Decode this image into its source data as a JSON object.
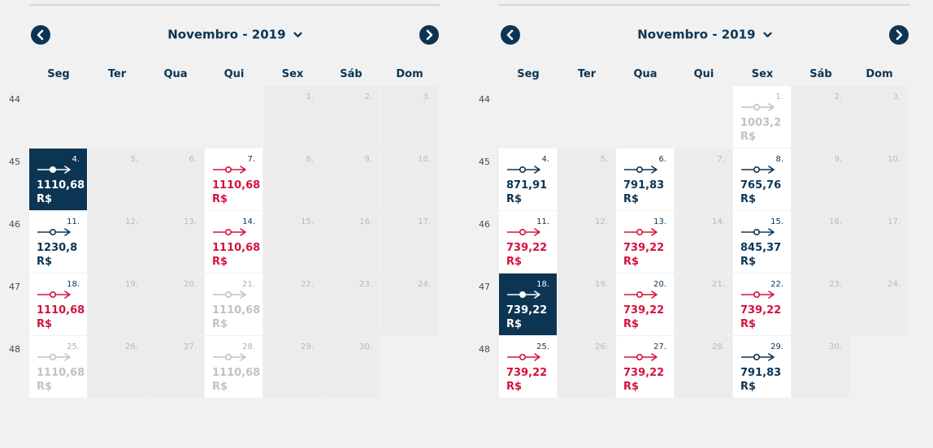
{
  "colors": {
    "navy": "#0c3554",
    "red": "#d5123d",
    "disabled": "#c2c2c2",
    "background": "#f1f1f1"
  },
  "icons": {
    "prev": "chevron-left-icon",
    "next": "chevron-right-icon",
    "month_dropdown": "chevron-down-icon",
    "flight": "flight-route-icon"
  },
  "weekdays": [
    "Seg",
    "Ter",
    "Qua",
    "Qui",
    "Sex",
    "Sáb",
    "Dom"
  ],
  "calendars": [
    {
      "month_label": "Novembro - 2019",
      "week_numbers": [
        "44",
        "45",
        "46",
        "47",
        "48"
      ],
      "weeks": [
        [
          null,
          null,
          null,
          null,
          {
            "day": "1.",
            "state": "closed"
          },
          {
            "day": "2.",
            "state": "closed"
          },
          {
            "day": "3.",
            "state": "closed"
          }
        ],
        [
          {
            "day": "4.",
            "state": "selected",
            "price": "1110,68",
            "currency": "R$"
          },
          {
            "day": "5.",
            "state": "closed"
          },
          {
            "day": "6.",
            "state": "closed"
          },
          {
            "day": "7.",
            "state": "cheapest",
            "price": "1110,68",
            "currency": "R$"
          },
          {
            "day": "8.",
            "state": "closed"
          },
          {
            "day": "9.",
            "state": "closed"
          },
          {
            "day": "10.",
            "state": "closed"
          }
        ],
        [
          {
            "day": "11.",
            "state": "available",
            "price": "1230,8",
            "currency": "R$"
          },
          {
            "day": "12.",
            "state": "closed"
          },
          {
            "day": "13.",
            "state": "closed"
          },
          {
            "day": "14.",
            "state": "cheapest",
            "price": "1110,68",
            "currency": "R$"
          },
          {
            "day": "15.",
            "state": "closed"
          },
          {
            "day": "16.",
            "state": "closed"
          },
          {
            "day": "17.",
            "state": "closed"
          }
        ],
        [
          {
            "day": "18.",
            "state": "cheapest",
            "price": "1110,68",
            "currency": "R$"
          },
          {
            "day": "19.",
            "state": "closed"
          },
          {
            "day": "20.",
            "state": "closed"
          },
          {
            "day": "21.",
            "state": "disabled",
            "price": "1110,68",
            "currency": "R$"
          },
          {
            "day": "22.",
            "state": "closed"
          },
          {
            "day": "23.",
            "state": "closed"
          },
          {
            "day": "24.",
            "state": "closed"
          }
        ],
        [
          {
            "day": "25.",
            "state": "disabled",
            "price": "1110,68",
            "currency": "R$"
          },
          {
            "day": "26.",
            "state": "closed"
          },
          {
            "day": "27.",
            "state": "closed"
          },
          {
            "day": "28.",
            "state": "disabled",
            "price": "1110,68",
            "currency": "R$"
          },
          {
            "day": "29.",
            "state": "closed"
          },
          {
            "day": "30.",
            "state": "closed"
          },
          null
        ]
      ]
    },
    {
      "month_label": "Novembro - 2019",
      "week_numbers": [
        "44",
        "45",
        "46",
        "47",
        "48"
      ],
      "weeks": [
        [
          null,
          null,
          null,
          null,
          {
            "day": "1.",
            "state": "disabled",
            "price": "1003,2",
            "currency": "R$"
          },
          {
            "day": "2.",
            "state": "closed"
          },
          {
            "day": "3.",
            "state": "closed"
          }
        ],
        [
          {
            "day": "4.",
            "state": "available",
            "price": "871,91",
            "currency": "R$"
          },
          {
            "day": "5.",
            "state": "closed"
          },
          {
            "day": "6.",
            "state": "available",
            "price": "791,83",
            "currency": "R$"
          },
          {
            "day": "7.",
            "state": "closed"
          },
          {
            "day": "8.",
            "state": "available",
            "price": "765,76",
            "currency": "R$"
          },
          {
            "day": "9.",
            "state": "closed"
          },
          {
            "day": "10.",
            "state": "closed"
          }
        ],
        [
          {
            "day": "11.",
            "state": "cheapest",
            "price": "739,22",
            "currency": "R$"
          },
          {
            "day": "12.",
            "state": "closed"
          },
          {
            "day": "13.",
            "state": "cheapest",
            "price": "739,22",
            "currency": "R$"
          },
          {
            "day": "14.",
            "state": "closed"
          },
          {
            "day": "15.",
            "state": "available",
            "price": "845,37",
            "currency": "R$"
          },
          {
            "day": "16.",
            "state": "closed"
          },
          {
            "day": "17.",
            "state": "closed"
          }
        ],
        [
          {
            "day": "18.",
            "state": "selected",
            "price": "739,22",
            "currency": "R$"
          },
          {
            "day": "19.",
            "state": "closed"
          },
          {
            "day": "20.",
            "state": "cheapest",
            "price": "739,22",
            "currency": "R$"
          },
          {
            "day": "21.",
            "state": "closed"
          },
          {
            "day": "22.",
            "state": "cheapest",
            "price": "739,22",
            "currency": "R$"
          },
          {
            "day": "23.",
            "state": "closed"
          },
          {
            "day": "24.",
            "state": "closed"
          }
        ],
        [
          {
            "day": "25.",
            "state": "cheapest",
            "price": "739,22",
            "currency": "R$"
          },
          {
            "day": "26.",
            "state": "closed"
          },
          {
            "day": "27.",
            "state": "cheapest",
            "price": "739,22",
            "currency": "R$"
          },
          {
            "day": "28.",
            "state": "closed"
          },
          {
            "day": "29.",
            "state": "available",
            "price": "791,83",
            "currency": "R$"
          },
          {
            "day": "30.",
            "state": "closed"
          },
          null
        ]
      ]
    }
  ]
}
